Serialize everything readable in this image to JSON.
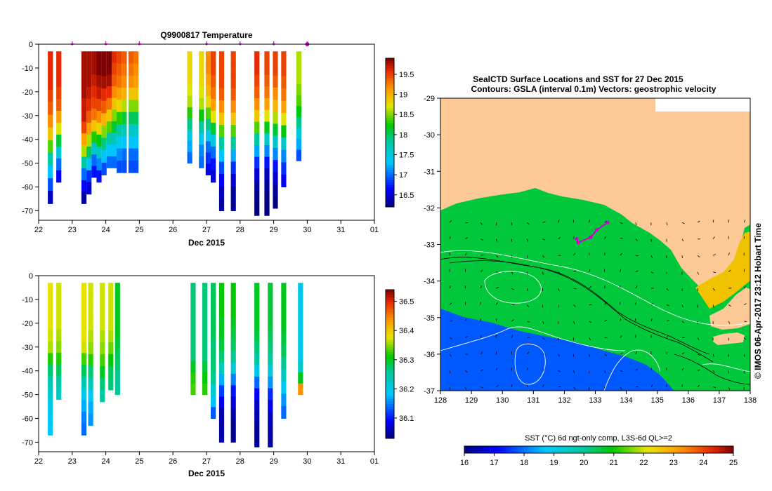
{
  "left_panels": {
    "temperature": {
      "title": "Q9900817  Temperature",
      "xlabel": "Dec 2015",
      "x_ticks": [
        "22",
        "23",
        "24",
        "25",
        "26",
        "27",
        "28",
        "29",
        "30",
        "31",
        "01"
      ],
      "y_ticks": [
        "0",
        "-10",
        "-20",
        "-30",
        "-40",
        "-50",
        "-60",
        "-70"
      ],
      "colorbar_ticks": [
        "16.5",
        "17",
        "17.5",
        "18",
        "18.5",
        "19",
        "19.5"
      ],
      "colorbar_range": [
        16.2,
        19.9
      ]
    },
    "salinity": {
      "xlabel": "Dec 2015",
      "x_ticks": [
        "22",
        "23",
        "24",
        "25",
        "26",
        "27",
        "28",
        "29",
        "30",
        "31",
        "01"
      ],
      "y_ticks": [
        "0",
        "-10",
        "-20",
        "-30",
        "-40",
        "-50",
        "-60",
        "-70"
      ],
      "colorbar_ticks": [
        "36.1",
        "36.2",
        "36.3",
        "36.4",
        "36.5"
      ],
      "colorbar_range": [
        36.03,
        36.54
      ]
    }
  },
  "map_panel": {
    "title_line1": "SealCTD Surface Locations and SST for 27 Dec 2015",
    "title_line2": "Contours: GSLA (interval 0.1m) Vectors: geostrophic velocity",
    "lon_ticks": [
      "128",
      "129",
      "130",
      "131",
      "132",
      "133",
      "134",
      "135",
      "136",
      "137",
      "138"
    ],
    "lat_ticks": [
      "-29",
      "-30",
      "-31",
      "-32",
      "-33",
      "-34",
      "-35",
      "-36",
      "-37"
    ],
    "credit": "© IMOS 06-Apr-2017 23:12 Hobart Time",
    "sst_bar_label": "SST (°C) 6d ngt-only comp, L3S-6d QL>=2",
    "sst_bar_ticks": [
      "16",
      "17",
      "18",
      "19",
      "20",
      "21",
      "22",
      "23",
      "24",
      "25"
    ],
    "sst_bar_range": [
      16,
      25
    ],
    "land_color": "#fdc997",
    "marker_color": "#d100d1"
  },
  "chart_data": [
    {
      "type": "heatmap",
      "title": "Q9900817  Temperature",
      "xlabel": "Dec 2015",
      "ylabel": "",
      "xlim": [
        22,
        32
      ],
      "ylim": [
        -74,
        0
      ],
      "surface_markers_day": [
        23.0,
        24.0,
        25.0,
        27.0,
        28.0,
        29.0,
        30.0
      ],
      "profiles": [
        {
          "day": 22.35,
          "bottom": -67,
          "vals": [
            19.6,
            19.6,
            19.6,
            19.5,
            19.4,
            19.2,
            18.9,
            18.4,
            17.8,
            17.3,
            16.9,
            16.4
          ]
        },
        {
          "day": 22.6,
          "bottom": -58,
          "vals": [
            19.6,
            19.6,
            19.6,
            19.5,
            19.4,
            19.1,
            18.7,
            18.1,
            17.5,
            17.0,
            16.6
          ]
        },
        {
          "day": 23.35,
          "bottom": -67,
          "vals": [
            19.8,
            19.8,
            19.8,
            19.8,
            19.7,
            19.7,
            19.5,
            19.1,
            18.6,
            17.8,
            17.0,
            16.6,
            16.3
          ]
        },
        {
          "day": 23.5,
          "bottom": -63,
          "vals": [
            19.8,
            19.8,
            19.8,
            19.7,
            19.6,
            19.4,
            19.1,
            18.6,
            18.0,
            17.3,
            16.8,
            16.5
          ]
        },
        {
          "day": 23.65,
          "bottom": -56,
          "vals": [
            19.8,
            19.8,
            19.7,
            19.6,
            19.5,
            19.3,
            18.9,
            18.3,
            17.6,
            17.0,
            16.7
          ]
        },
        {
          "day": 23.8,
          "bottom": -58,
          "vals": [
            19.9,
            19.9,
            19.8,
            19.7,
            19.5,
            19.2,
            18.8,
            18.2,
            17.6,
            17.1,
            16.7
          ]
        },
        {
          "day": 23.95,
          "bottom": -55,
          "vals": [
            19.9,
            19.9,
            19.8,
            19.6,
            19.4,
            19.0,
            18.5,
            17.9,
            17.3,
            16.9
          ]
        },
        {
          "day": 24.1,
          "bottom": -52,
          "vals": [
            19.9,
            19.9,
            19.8,
            19.6,
            19.3,
            18.9,
            18.4,
            17.8,
            17.3,
            17.0
          ]
        },
        {
          "day": 24.25,
          "bottom": -52,
          "vals": [
            19.6,
            19.5,
            19.4,
            19.2,
            18.9,
            18.5,
            18.1,
            17.7,
            17.3,
            17.0
          ]
        },
        {
          "day": 24.4,
          "bottom": -54,
          "vals": [
            19.5,
            19.4,
            19.3,
            19.1,
            18.8,
            18.3,
            17.8,
            17.4,
            17.1,
            16.9
          ]
        },
        {
          "day": 24.55,
          "bottom": -54,
          "vals": [
            19.4,
            19.3,
            19.2,
            19.0,
            18.6,
            18.1,
            17.7,
            17.3,
            17.0,
            16.9
          ]
        },
        {
          "day": 24.75,
          "bottom": -54,
          "vals": [
            19.4,
            19.3,
            19.2,
            18.9,
            18.5,
            18.0,
            17.6,
            17.3,
            17.0,
            16.9
          ]
        },
        {
          "day": 24.9,
          "bottom": -54,
          "vals": [
            19.3,
            19.2,
            19.1,
            18.9,
            18.5,
            18.0,
            17.6,
            17.3,
            17.0,
            16.9
          ]
        },
        {
          "day": 26.5,
          "bottom": -50,
          "vals": [
            18.8,
            18.8,
            18.8,
            18.7,
            18.6,
            18.3,
            17.9,
            17.5,
            17.2,
            17.0
          ]
        },
        {
          "day": 26.85,
          "bottom": -52,
          "vals": [
            18.8,
            18.8,
            18.8,
            18.7,
            18.6,
            18.2,
            17.8,
            17.4,
            17.1,
            17.0
          ]
        },
        {
          "day": 27.05,
          "bottom": -55,
          "vals": [
            19.2,
            19.2,
            19.1,
            19.0,
            18.8,
            18.4,
            17.9,
            17.4,
            17.0,
            16.8,
            16.6
          ]
        },
        {
          "day": 27.2,
          "bottom": -58,
          "vals": [
            19.5,
            19.5,
            19.4,
            19.3,
            19.1,
            18.7,
            18.1,
            17.5,
            17.0,
            16.7,
            16.5
          ]
        },
        {
          "day": 27.45,
          "bottom": -70,
          "vals": [
            19.5,
            19.5,
            19.5,
            19.4,
            19.2,
            18.9,
            18.4,
            17.8,
            17.3,
            16.9,
            16.6,
            16.4,
            16.3
          ]
        },
        {
          "day": 27.8,
          "bottom": -70,
          "vals": [
            19.5,
            19.5,
            19.5,
            19.4,
            19.2,
            18.9,
            18.4,
            17.8,
            17.2,
            16.8,
            16.5,
            16.3,
            16.3
          ]
        },
        {
          "day": 28.5,
          "bottom": -72,
          "vals": [
            19.6,
            19.6,
            19.5,
            19.4,
            19.2,
            18.9,
            18.4,
            17.8,
            17.2,
            16.8,
            16.5,
            16.3,
            16.2,
            16.2
          ]
        },
        {
          "day": 28.8,
          "bottom": -72,
          "vals": [
            19.5,
            19.5,
            19.4,
            19.3,
            19.1,
            18.7,
            18.2,
            17.6,
            17.1,
            16.7,
            16.4,
            16.3,
            16.2,
            16.2
          ]
        },
        {
          "day": 29.05,
          "bottom": -69,
          "vals": [
            19.5,
            19.5,
            19.4,
            19.2,
            19.0,
            18.6,
            18.1,
            17.6,
            17.1,
            16.7,
            16.5,
            16.3,
            16.2
          ]
        },
        {
          "day": 29.3,
          "bottom": -60,
          "vals": [
            19.5,
            19.5,
            19.4,
            19.3,
            19.1,
            18.7,
            18.2,
            17.6,
            17.1,
            16.8,
            16.6
          ]
        },
        {
          "day": 29.75,
          "bottom": -49,
          "vals": [
            18.6,
            18.6,
            18.6,
            18.5,
            18.4,
            18.2,
            17.9,
            17.5,
            17.2,
            16.9
          ]
        }
      ]
    },
    {
      "type": "heatmap",
      "title": "",
      "xlabel": "Dec 2015",
      "ylabel": "",
      "xlim": [
        22,
        32
      ],
      "ylim": [
        -74,
        0
      ],
      "profiles": [
        {
          "day": 22.35,
          "bottom": -67,
          "vals": [
            36.38,
            36.38,
            36.38,
            36.38,
            36.37,
            36.36,
            36.32,
            36.27,
            36.24,
            36.22,
            36.2,
            36.19,
            36.19
          ]
        },
        {
          "day": 22.6,
          "bottom": -52,
          "vals": [
            36.37,
            36.37,
            36.37,
            36.37,
            36.36,
            36.35,
            36.32,
            36.28,
            36.25,
            36.23
          ]
        },
        {
          "day": 23.35,
          "bottom": -67,
          "vals": [
            36.38,
            36.38,
            36.38,
            36.38,
            36.38,
            36.37,
            36.33,
            36.28,
            36.24,
            36.2,
            36.17,
            36.15,
            36.14
          ]
        },
        {
          "day": 23.55,
          "bottom": -63,
          "vals": [
            36.37,
            36.37,
            36.37,
            36.37,
            36.36,
            36.35,
            36.32,
            36.27,
            36.23,
            36.19,
            36.17,
            36.16
          ]
        },
        {
          "day": 23.9,
          "bottom": -53,
          "vals": [
            36.37,
            36.37,
            36.37,
            36.37,
            36.36,
            36.35,
            36.33,
            36.3,
            36.27,
            36.25
          ]
        },
        {
          "day": 24.15,
          "bottom": -48,
          "vals": [
            36.37,
            36.37,
            36.37,
            36.37,
            36.36,
            36.34,
            36.31,
            36.28,
            36.27
          ]
        },
        {
          "day": 24.35,
          "bottom": -50,
          "vals": [
            36.3,
            36.3,
            36.3,
            36.3,
            36.3,
            36.29,
            36.28,
            36.27,
            36.26,
            36.26
          ]
        },
        {
          "day": 26.6,
          "bottom": -50,
          "vals": [
            36.27,
            36.27,
            36.27,
            36.27,
            36.27,
            36.27,
            36.27,
            36.3,
            36.32,
            36.33
          ]
        },
        {
          "day": 26.95,
          "bottom": -50,
          "vals": [
            36.27,
            36.27,
            36.27,
            36.27,
            36.27,
            36.27,
            36.27,
            36.29,
            36.31,
            36.32
          ]
        },
        {
          "day": 27.2,
          "bottom": -60,
          "vals": [
            36.28,
            36.28,
            36.28,
            36.28,
            36.28,
            36.27,
            36.27,
            36.27,
            36.26,
            36.22,
            36.18,
            36.13
          ]
        },
        {
          "day": 27.45,
          "bottom": -70,
          "vals": [
            36.31,
            36.31,
            36.31,
            36.3,
            36.3,
            36.29,
            36.27,
            36.23,
            36.17,
            36.12,
            36.08,
            36.05,
            36.05,
            36.05
          ]
        },
        {
          "day": 27.8,
          "bottom": -70,
          "vals": [
            36.31,
            36.31,
            36.31,
            36.3,
            36.29,
            36.28,
            36.26,
            36.21,
            36.15,
            36.1,
            36.07,
            36.05,
            36.04,
            36.04
          ]
        },
        {
          "day": 28.5,
          "bottom": -72,
          "vals": [
            36.3,
            36.3,
            36.3,
            36.3,
            36.29,
            36.27,
            36.25,
            36.2,
            36.14,
            36.09,
            36.06,
            36.05,
            36.04,
            36.04
          ]
        },
        {
          "day": 28.9,
          "bottom": -72,
          "vals": [
            36.29,
            36.29,
            36.29,
            36.29,
            36.28,
            36.27,
            36.25,
            36.21,
            36.16,
            36.11,
            36.08,
            36.06,
            36.05,
            36.05
          ]
        },
        {
          "day": 29.3,
          "bottom": -60,
          "vals": [
            36.3,
            36.3,
            36.3,
            36.3,
            36.29,
            36.28,
            36.26,
            36.23,
            36.19,
            36.16,
            36.14
          ]
        },
        {
          "day": 29.8,
          "bottom": -50,
          "vals": [
            36.2,
            36.2,
            36.2,
            36.2,
            36.2,
            36.2,
            36.2,
            36.22,
            36.3,
            36.44
          ]
        }
      ]
    },
    {
      "type": "heatmap",
      "title": "SealCTD Surface Locations and SST for 27 Dec 2015",
      "subtitle": "Contours: GSLA (interval 0.1m) Vectors: geostrophic velocity",
      "xlim": [
        128,
        138
      ],
      "ylim": [
        -37,
        -29
      ],
      "sst_range": [
        16,
        25
      ],
      "sst_field_notes": "warm 21 near coast, cooler 17-18 offshore south-west",
      "seal_track": [
        [
          132.4,
          -32.85
        ],
        [
          132.45,
          -32.95
        ],
        [
          132.85,
          -32.8
        ],
        [
          133.05,
          -32.6
        ],
        [
          133.4,
          -32.4
        ]
      ]
    }
  ]
}
